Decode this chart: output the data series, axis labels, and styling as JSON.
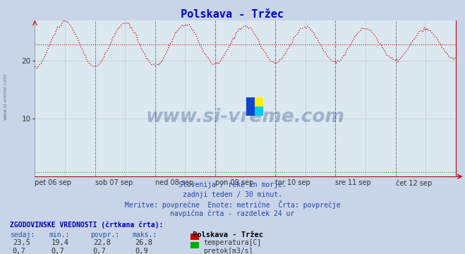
{
  "title": "Polskava - Tržec",
  "title_color": "#0000cc",
  "background_color": "#c8d4e8",
  "plot_bg_color": "#dce8f0",
  "x_labels": [
    "pet 06 sep",
    "sob 07 sep",
    "ned 08 sep",
    "pon 09 sep",
    "tor 10 sep",
    "sre 11 sep",
    "čet 12 sep"
  ],
  "ylim": [
    0,
    27
  ],
  "yticks": [
    10,
    20
  ],
  "temp_color": "#cc0000",
  "flow_color": "#00bb00",
  "avg_temp": 22.8,
  "avg_flow": 0.7,
  "vline_magenta": "#dd44dd",
  "vline_dark": "#888888",
  "grid_color": "#c0c8d8",
  "watermark": "www.si-vreme.com",
  "subtitle_lines": [
    "Slovenija / reke in morje.",
    "zadnji teden / 30 minut.",
    "Meritve: povprečne  Enote: metrične  Črta: povprečje",
    "navpična črta - razdelek 24 ur"
  ],
  "legend_title": "Polskava - Tržec",
  "legend_entries": [
    "temperatura[C]",
    "pretok[m3/s]"
  ],
  "legend_colors": [
    "#cc0000",
    "#00aa00"
  ],
  "stats_header": "ZGODOVINSKE VREDNOSTI (črtkana črta):",
  "stats_cols": [
    "sedaj:",
    "min.:",
    "povpr.:",
    "maks.:"
  ],
  "stats_temp": [
    "23,5",
    "19,4",
    "22,8",
    "26,8"
  ],
  "stats_flow": [
    "0,7",
    "0,7",
    "0,7",
    "0,9"
  ],
  "n_points": 336,
  "temp_avg": 22.8,
  "flow_avg": 0.7,
  "n_days": 7
}
